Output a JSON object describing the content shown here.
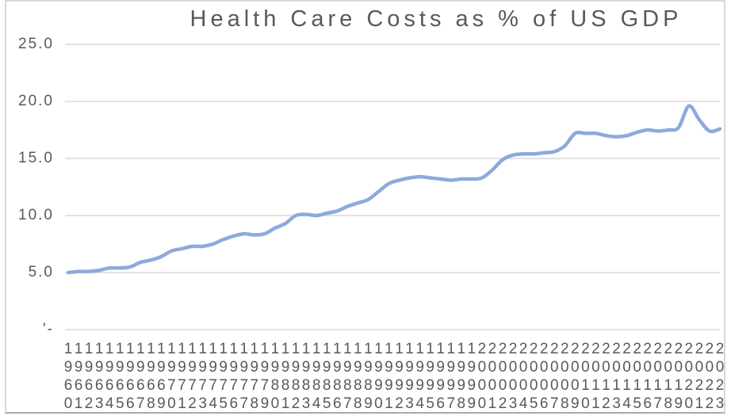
{
  "window": {
    "background": "#ffffff",
    "frame_border_color": "#d8d8d8",
    "frame_bottom_color": "#a9a9a9"
  },
  "chart_data": {
    "type": "line",
    "title": "Health Care Costs as % of US GDP",
    "smoothed": true,
    "grid": true,
    "legend": "none",
    "line_color": "#8ea9db",
    "gridline_color": "#d9d9d9",
    "text_color": "#595959",
    "xlabel": "",
    "ylabel": "",
    "ylim": [
      0,
      25
    ],
    "y_ticks": [
      {
        "label": "25.0",
        "value": 25
      },
      {
        "label": "20.0",
        "value": 20
      },
      {
        "label": "15.0",
        "value": 15
      },
      {
        "label": "10.0",
        "value": 10
      },
      {
        "label": "5.0",
        "value": 5
      },
      {
        "label": "'-",
        "value": 0
      }
    ],
    "x": [
      1960,
      1961,
      1962,
      1963,
      1964,
      1965,
      1966,
      1967,
      1968,
      1969,
      1970,
      1971,
      1972,
      1973,
      1974,
      1975,
      1976,
      1977,
      1978,
      1979,
      1980,
      1981,
      1982,
      1983,
      1984,
      1985,
      1986,
      1987,
      1988,
      1989,
      1990,
      1991,
      1992,
      1993,
      1994,
      1995,
      1996,
      1997,
      1998,
      1999,
      2000,
      2001,
      2002,
      2003,
      2004,
      2005,
      2006,
      2007,
      2008,
      2009,
      2010,
      2011,
      2012,
      2013,
      2014,
      2015,
      2016,
      2017,
      2018,
      2019,
      2020,
      2021,
      2022,
      2023
    ],
    "values": [
      5.0,
      5.1,
      5.1,
      5.2,
      5.4,
      5.4,
      5.5,
      5.9,
      6.1,
      6.4,
      6.9,
      7.1,
      7.3,
      7.3,
      7.5,
      7.9,
      8.2,
      8.4,
      8.3,
      8.4,
      8.9,
      9.3,
      10.0,
      10.1,
      10.0,
      10.2,
      10.4,
      10.8,
      11.1,
      11.4,
      12.1,
      12.8,
      13.1,
      13.3,
      13.4,
      13.3,
      13.2,
      13.1,
      13.2,
      13.2,
      13.3,
      14.0,
      14.9,
      15.3,
      15.4,
      15.4,
      15.5,
      15.6,
      16.1,
      17.2,
      17.2,
      17.2,
      17.0,
      16.9,
      17.0,
      17.3,
      17.5,
      17.4,
      17.5,
      17.7,
      19.6,
      18.4,
      17.4,
      17.6
    ]
  }
}
